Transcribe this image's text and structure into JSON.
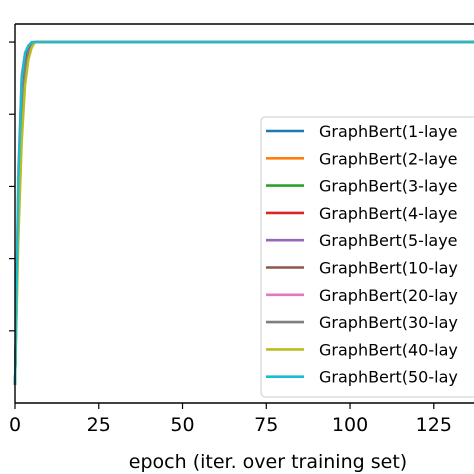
{
  "chart_data": {
    "type": "line",
    "title": "",
    "xlabel": "epoch (iter. over training set)",
    "ylabel": "",
    "xlim": [
      0,
      137
    ],
    "ylim": [
      0.0,
      1.05
    ],
    "x_ticks": [
      "0",
      "25",
      "50",
      "75",
      "100",
      "125"
    ],
    "x_tick_values": [
      0,
      25,
      50,
      75,
      100,
      125
    ],
    "y_tick_values": [
      0.2,
      0.4,
      0.6,
      0.8,
      1.0
    ],
    "grid": false,
    "legend_position": "right",
    "series": [
      {
        "name": "GraphBert(1-laye",
        "color": "#1f77b4",
        "x": [
          0,
          1,
          2,
          3,
          4,
          5,
          6,
          137
        ],
        "y": [
          0.05,
          0.55,
          0.82,
          0.93,
          0.97,
          0.99,
          1.0,
          1.0
        ]
      },
      {
        "name": "GraphBert(2-laye",
        "color": "#ff7f0e",
        "x": [
          0,
          1,
          2,
          3,
          4,
          5,
          6,
          137
        ],
        "y": [
          0.05,
          0.56,
          0.84,
          0.94,
          0.98,
          0.995,
          1.0,
          1.0
        ]
      },
      {
        "name": "GraphBert(3-laye",
        "color": "#2ca02c",
        "x": [
          0,
          1,
          2,
          3,
          4,
          5,
          6,
          137
        ],
        "y": [
          0.05,
          0.54,
          0.83,
          0.93,
          0.97,
          0.99,
          1.0,
          1.0
        ]
      },
      {
        "name": "GraphBert(4-laye",
        "color": "#d62728",
        "x": [
          0,
          1,
          2,
          3,
          4,
          5,
          6,
          137
        ],
        "y": [
          0.05,
          0.57,
          0.85,
          0.95,
          0.98,
          0.995,
          1.0,
          1.0
        ]
      },
      {
        "name": "GraphBert(5-laye",
        "color": "#9467bd",
        "x": [
          0,
          1,
          2,
          3,
          4,
          5,
          6,
          137
        ],
        "y": [
          0.05,
          0.6,
          0.88,
          0.96,
          0.99,
          1.0,
          1.0,
          1.0
        ]
      },
      {
        "name": "GraphBert(10-lay",
        "color": "#8c564b",
        "x": [
          0,
          1,
          2,
          3,
          4,
          5,
          6,
          137
        ],
        "y": [
          0.05,
          0.58,
          0.86,
          0.95,
          0.985,
          0.995,
          1.0,
          1.0
        ]
      },
      {
        "name": "GraphBert(20-lay",
        "color": "#e377c2",
        "x": [
          0,
          1,
          2,
          3,
          4,
          5,
          6,
          137
        ],
        "y": [
          0.05,
          0.65,
          0.91,
          0.97,
          0.99,
          1.0,
          1.0,
          1.0
        ]
      },
      {
        "name": "GraphBert(30-lay",
        "color": "#7f7f7f",
        "x": [
          0,
          1,
          2,
          3,
          4,
          5,
          6,
          137
        ],
        "y": [
          0.05,
          0.52,
          0.8,
          0.92,
          0.97,
          0.99,
          1.0,
          1.0
        ]
      },
      {
        "name": "GraphBert(40-lay",
        "color": "#bcbd22",
        "x": [
          0,
          1,
          2,
          3,
          4,
          5,
          6,
          137
        ],
        "y": [
          0.05,
          0.45,
          0.72,
          0.88,
          0.95,
          0.985,
          1.0,
          1.0
        ]
      },
      {
        "name": "GraphBert(50-lay",
        "color": "#17becf",
        "x": [
          0,
          1,
          2,
          3,
          4,
          5,
          6,
          137
        ],
        "y": [
          0.05,
          0.62,
          0.9,
          0.97,
          0.99,
          1.0,
          1.0,
          1.0
        ]
      }
    ]
  }
}
